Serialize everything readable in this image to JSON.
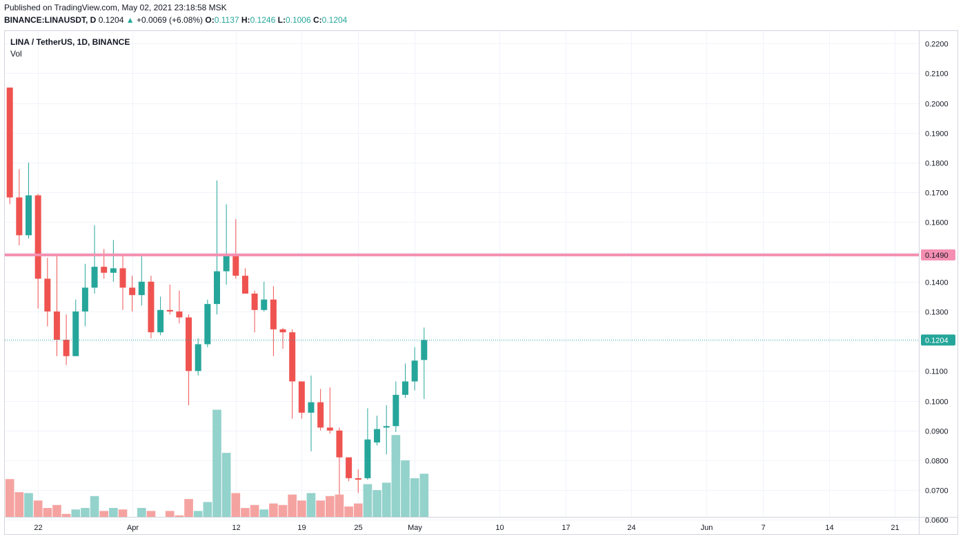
{
  "header": {
    "published": "Published on TradingView.com, May 02, 2021 23:18:58 MSK",
    "symbol": "BINANCE:LINAUSDT, D",
    "price": "0.1204",
    "change": "+0.0069 (+6.08%)",
    "o_label": "O:",
    "o": "0.1137",
    "h_label": "H:",
    "h": "0.1246",
    "l_label": "L:",
    "l": "0.1006",
    "c_label": "C:",
    "c": "0.1204"
  },
  "legend": {
    "title": "LINA / TetherUS, 1D, BINANCE",
    "vol": "Vol"
  },
  "colors": {
    "up": "#26a69a",
    "down": "#ef5350",
    "vol_up": "#94d2cc",
    "vol_down": "#f5a3a1",
    "level_line": "#f48fb1",
    "grid": "#f0f3fa"
  },
  "chart_data": {
    "type": "candlestick",
    "y_axis_ticks": [
      "0.0600",
      "0.0700",
      "0.0800",
      "0.0900",
      "0.1000",
      "0.1100",
      "0.1200",
      "0.1300",
      "0.1400",
      "0.1500",
      "0.1600",
      "0.1700",
      "0.1800",
      "0.1900",
      "0.2000",
      "0.2100",
      "0.2200"
    ],
    "ylim": [
      0.0565,
      0.2235
    ],
    "x_axis_ticks": [
      {
        "label": "22",
        "index": 3
      },
      {
        "label": "Apr",
        "index": 13
      },
      {
        "label": "12",
        "index": 24
      },
      {
        "label": "19",
        "index": 31
      },
      {
        "label": "25",
        "index": 37
      },
      {
        "label": "May",
        "index": 43
      },
      {
        "label": "10",
        "index": 52
      },
      {
        "label": "17",
        "index": 59
      },
      {
        "label": "24",
        "index": 66
      },
      {
        "label": "Jun",
        "index": 74
      },
      {
        "label": "7",
        "index": 80
      },
      {
        "label": "14",
        "index": 87
      },
      {
        "label": "21",
        "index": 94
      }
    ],
    "horizontal_line": {
      "value": 0.149,
      "label": "0.1490"
    },
    "last_price": {
      "value": 0.1204,
      "label": "0.1204"
    },
    "candles": [
      {
        "o": 0.2052,
        "h": 0.2052,
        "l": 0.166,
        "c": 0.1683,
        "v": 0.0737
      },
      {
        "o": 0.1683,
        "h": 0.1778,
        "l": 0.1522,
        "c": 0.1556,
        "v": 0.0693
      },
      {
        "o": 0.1556,
        "h": 0.18,
        "l": 0.1545,
        "c": 0.169,
        "v": 0.069
      },
      {
        "o": 0.169,
        "h": 0.1695,
        "l": 0.131,
        "c": 0.141,
        "v": 0.0665
      },
      {
        "o": 0.141,
        "h": 0.148,
        "l": 0.125,
        "c": 0.13,
        "v": 0.064
      },
      {
        "o": 0.13,
        "h": 0.149,
        "l": 0.115,
        "c": 0.1205,
        "v": 0.065
      },
      {
        "o": 0.1205,
        "h": 0.129,
        "l": 0.112,
        "c": 0.115,
        "v": 0.062
      },
      {
        "o": 0.115,
        "h": 0.134,
        "l": 0.115,
        "c": 0.13,
        "v": 0.0635
      },
      {
        "o": 0.13,
        "h": 0.146,
        "l": 0.125,
        "c": 0.138,
        "v": 0.064
      },
      {
        "o": 0.138,
        "h": 0.159,
        "l": 0.136,
        "c": 0.145,
        "v": 0.068
      },
      {
        "o": 0.145,
        "h": 0.151,
        "l": 0.141,
        "c": 0.143,
        "v": 0.063
      },
      {
        "o": 0.143,
        "h": 0.154,
        "l": 0.14,
        "c": 0.1445,
        "v": 0.064
      },
      {
        "o": 0.1445,
        "h": 0.149,
        "l": 0.1305,
        "c": 0.138,
        "v": 0.0635
      },
      {
        "o": 0.138,
        "h": 0.142,
        "l": 0.13,
        "c": 0.1355,
        "v": 0.061
      },
      {
        "o": 0.1355,
        "h": 0.149,
        "l": 0.132,
        "c": 0.14,
        "v": 0.064
      },
      {
        "o": 0.14,
        "h": 0.142,
        "l": 0.121,
        "c": 0.123,
        "v": 0.063
      },
      {
        "o": 0.123,
        "h": 0.135,
        "l": 0.122,
        "c": 0.1305,
        "v": 0.0605
      },
      {
        "o": 0.1305,
        "h": 0.139,
        "l": 0.129,
        "c": 0.13,
        "v": 0.063
      },
      {
        "o": 0.13,
        "h": 0.137,
        "l": 0.126,
        "c": 0.128,
        "v": 0.0615
      },
      {
        "o": 0.128,
        "h": 0.129,
        "l": 0.0985,
        "c": 0.11,
        "v": 0.067
      },
      {
        "o": 0.11,
        "h": 0.121,
        "l": 0.1085,
        "c": 0.119,
        "v": 0.063
      },
      {
        "o": 0.119,
        "h": 0.134,
        "l": 0.118,
        "c": 0.1325,
        "v": 0.066
      },
      {
        "o": 0.1325,
        "h": 0.174,
        "l": 0.129,
        "c": 0.1435,
        "v": 0.097
      },
      {
        "o": 0.1435,
        "h": 0.166,
        "l": 0.139,
        "c": 0.149,
        "v": 0.0825
      },
      {
        "o": 0.149,
        "h": 0.161,
        "l": 0.141,
        "c": 0.142,
        "v": 0.069
      },
      {
        "o": 0.142,
        "h": 0.1445,
        "l": 0.136,
        "c": 0.136,
        "v": 0.064
      },
      {
        "o": 0.136,
        "h": 0.137,
        "l": 0.123,
        "c": 0.1305,
        "v": 0.065
      },
      {
        "o": 0.1305,
        "h": 0.14,
        "l": 0.13,
        "c": 0.134,
        "v": 0.0635
      },
      {
        "o": 0.134,
        "h": 0.1385,
        "l": 0.115,
        "c": 0.124,
        "v": 0.0655
      },
      {
        "o": 0.124,
        "h": 0.1245,
        "l": 0.1175,
        "c": 0.123,
        "v": 0.065
      },
      {
        "o": 0.123,
        "h": 0.124,
        "l": 0.094,
        "c": 0.1065,
        "v": 0.0685
      },
      {
        "o": 0.1065,
        "h": 0.1065,
        "l": 0.094,
        "c": 0.096,
        "v": 0.0665
      },
      {
        "o": 0.096,
        "h": 0.1085,
        "l": 0.083,
        "c": 0.0995,
        "v": 0.069
      },
      {
        "o": 0.0995,
        "h": 0.104,
        "l": 0.09,
        "c": 0.091,
        "v": 0.0665
      },
      {
        "o": 0.091,
        "h": 0.1045,
        "l": 0.089,
        "c": 0.09,
        "v": 0.068
      },
      {
        "o": 0.09,
        "h": 0.091,
        "l": 0.0685,
        "c": 0.081,
        "v": 0.0685
      },
      {
        "o": 0.081,
        "h": 0.081,
        "l": 0.073,
        "c": 0.074,
        "v": 0.0645
      },
      {
        "o": 0.074,
        "h": 0.077,
        "l": 0.069,
        "c": 0.0735,
        "v": 0.0655
      },
      {
        "o": 0.074,
        "h": 0.0975,
        "l": 0.0735,
        "c": 0.087,
        "v": 0.072
      },
      {
        "o": 0.086,
        "h": 0.095,
        "l": 0.085,
        "c": 0.0905,
        "v": 0.07
      },
      {
        "o": 0.091,
        "h": 0.0985,
        "l": 0.082,
        "c": 0.0915,
        "v": 0.0725
      },
      {
        "o": 0.0915,
        "h": 0.1065,
        "l": 0.0895,
        "c": 0.102,
        "v": 0.0885
      },
      {
        "o": 0.102,
        "h": 0.1125,
        "l": 0.101,
        "c": 0.1065,
        "v": 0.08
      },
      {
        "o": 0.1065,
        "h": 0.118,
        "l": 0.1035,
        "c": 0.1135,
        "v": 0.074
      },
      {
        "o": 0.1137,
        "h": 0.1246,
        "l": 0.1006,
        "c": 0.1204,
        "v": 0.0755
      }
    ]
  }
}
